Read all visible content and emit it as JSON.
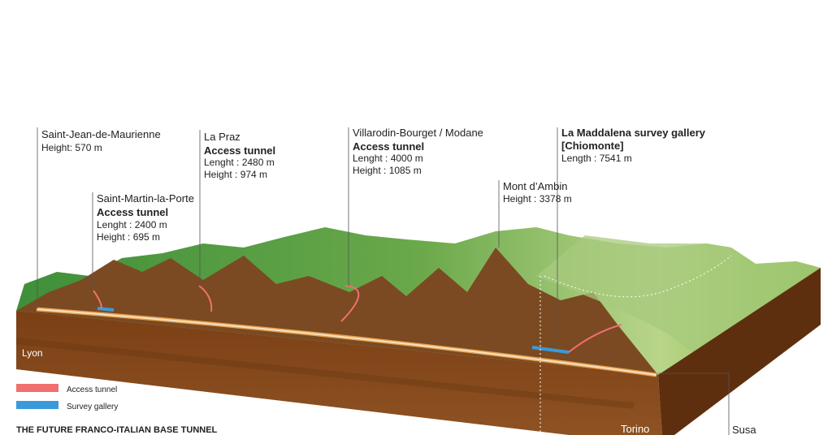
{
  "callouts": [
    {
      "place": "Saint-Jean-de-Maurienne",
      "details": [
        "Height: 570 m"
      ]
    },
    {
      "place": "Saint-Martin-la-Porte",
      "kind": "Access tunnel",
      "details": [
        "Lenght : 2400 m",
        "Height : 695 m"
      ]
    },
    {
      "place": "La Praz",
      "kind": "Access tunnel",
      "details": [
        "Lenght : 2480 m",
        "Height : 974 m"
      ]
    },
    {
      "place": "Villarodin-Bourget / Modane",
      "kind": "Access tunnel",
      "details": [
        "Lenght : 4000 m",
        "Height : 1085 m"
      ]
    },
    {
      "place": "Mont d’Ambin",
      "details": [
        "Height : 3378 m"
      ]
    },
    {
      "place": "La Maddalena survey gallery",
      "kind": "[Chiomonte]",
      "details": [
        "Length : 7541 m"
      ]
    }
  ],
  "ends": {
    "lyon": "Lyon",
    "torino": "Torino",
    "susa": "Susa"
  },
  "legend": [
    "Access tunnel",
    "Survey gallery"
  ],
  "title": "THE FUTURE FRANCO-ITALIAN BASE TUNNEL"
}
